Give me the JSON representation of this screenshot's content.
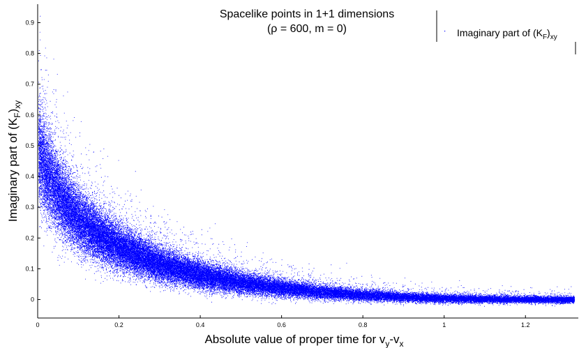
{
  "chart_data": {
    "type": "scatter",
    "title_line1": "Spacelike points in 1+1 dimensions",
    "title_line2": "(ρ = 600, m = 0)",
    "xlabel": {
      "main": "Absolute value of proper time for v",
      "sub1": "y",
      "mid": "-v",
      "sub2": "x"
    },
    "ylabel": {
      "pre": "Imaginary part of (K",
      "sub1": "F",
      "post": ")",
      "sub2": "xy"
    },
    "legend": {
      "entries": [
        {
          "pre": "Imaginary part of (K",
          "sub1": "F",
          "post": ")",
          "sub2": "xy",
          "color": "#0000ff"
        }
      ],
      "placement": "top-right"
    },
    "xlim": [
      0,
      1.33
    ],
    "ylim": [
      -0.06,
      0.96
    ],
    "xticks": [
      0,
      0.2,
      0.4,
      0.6,
      0.8,
      1,
      1.2
    ],
    "xtick_labels": [
      "0",
      "0.2",
      "0.4",
      "0.6",
      "0.8",
      "1",
      "1.2"
    ],
    "yticks": [
      0,
      0.1,
      0.2,
      0.3,
      0.4,
      0.5,
      0.6,
      0.7,
      0.8,
      0.9
    ],
    "ytick_labels": [
      "0",
      "0.1",
      "0.2",
      "0.3",
      "0.4",
      "0.5",
      "0.6",
      "0.7",
      "0.8",
      "0.9"
    ],
    "grid": false,
    "series": [
      {
        "color": "#0000ff",
        "marker": "dot",
        "n_points": 60000,
        "trend_x": [
          0.0,
          0.02,
          0.05,
          0.1,
          0.15,
          0.2,
          0.3,
          0.4,
          0.5,
          0.6,
          0.7,
          0.8,
          0.9,
          1.0,
          1.1,
          1.2,
          1.3
        ],
        "trend_y": [
          0.48,
          0.42,
          0.34,
          0.26,
          0.21,
          0.17,
          0.115,
          0.08,
          0.055,
          0.038,
          0.025,
          0.015,
          0.008,
          0.004,
          0.002,
          0.001,
          0.0
        ],
        "spread_y": [
          0.15,
          0.13,
          0.11,
          0.09,
          0.075,
          0.065,
          0.05,
          0.04,
          0.032,
          0.026,
          0.021,
          0.017,
          0.014,
          0.012,
          0.011,
          0.01,
          0.01
        ]
      }
    ]
  }
}
